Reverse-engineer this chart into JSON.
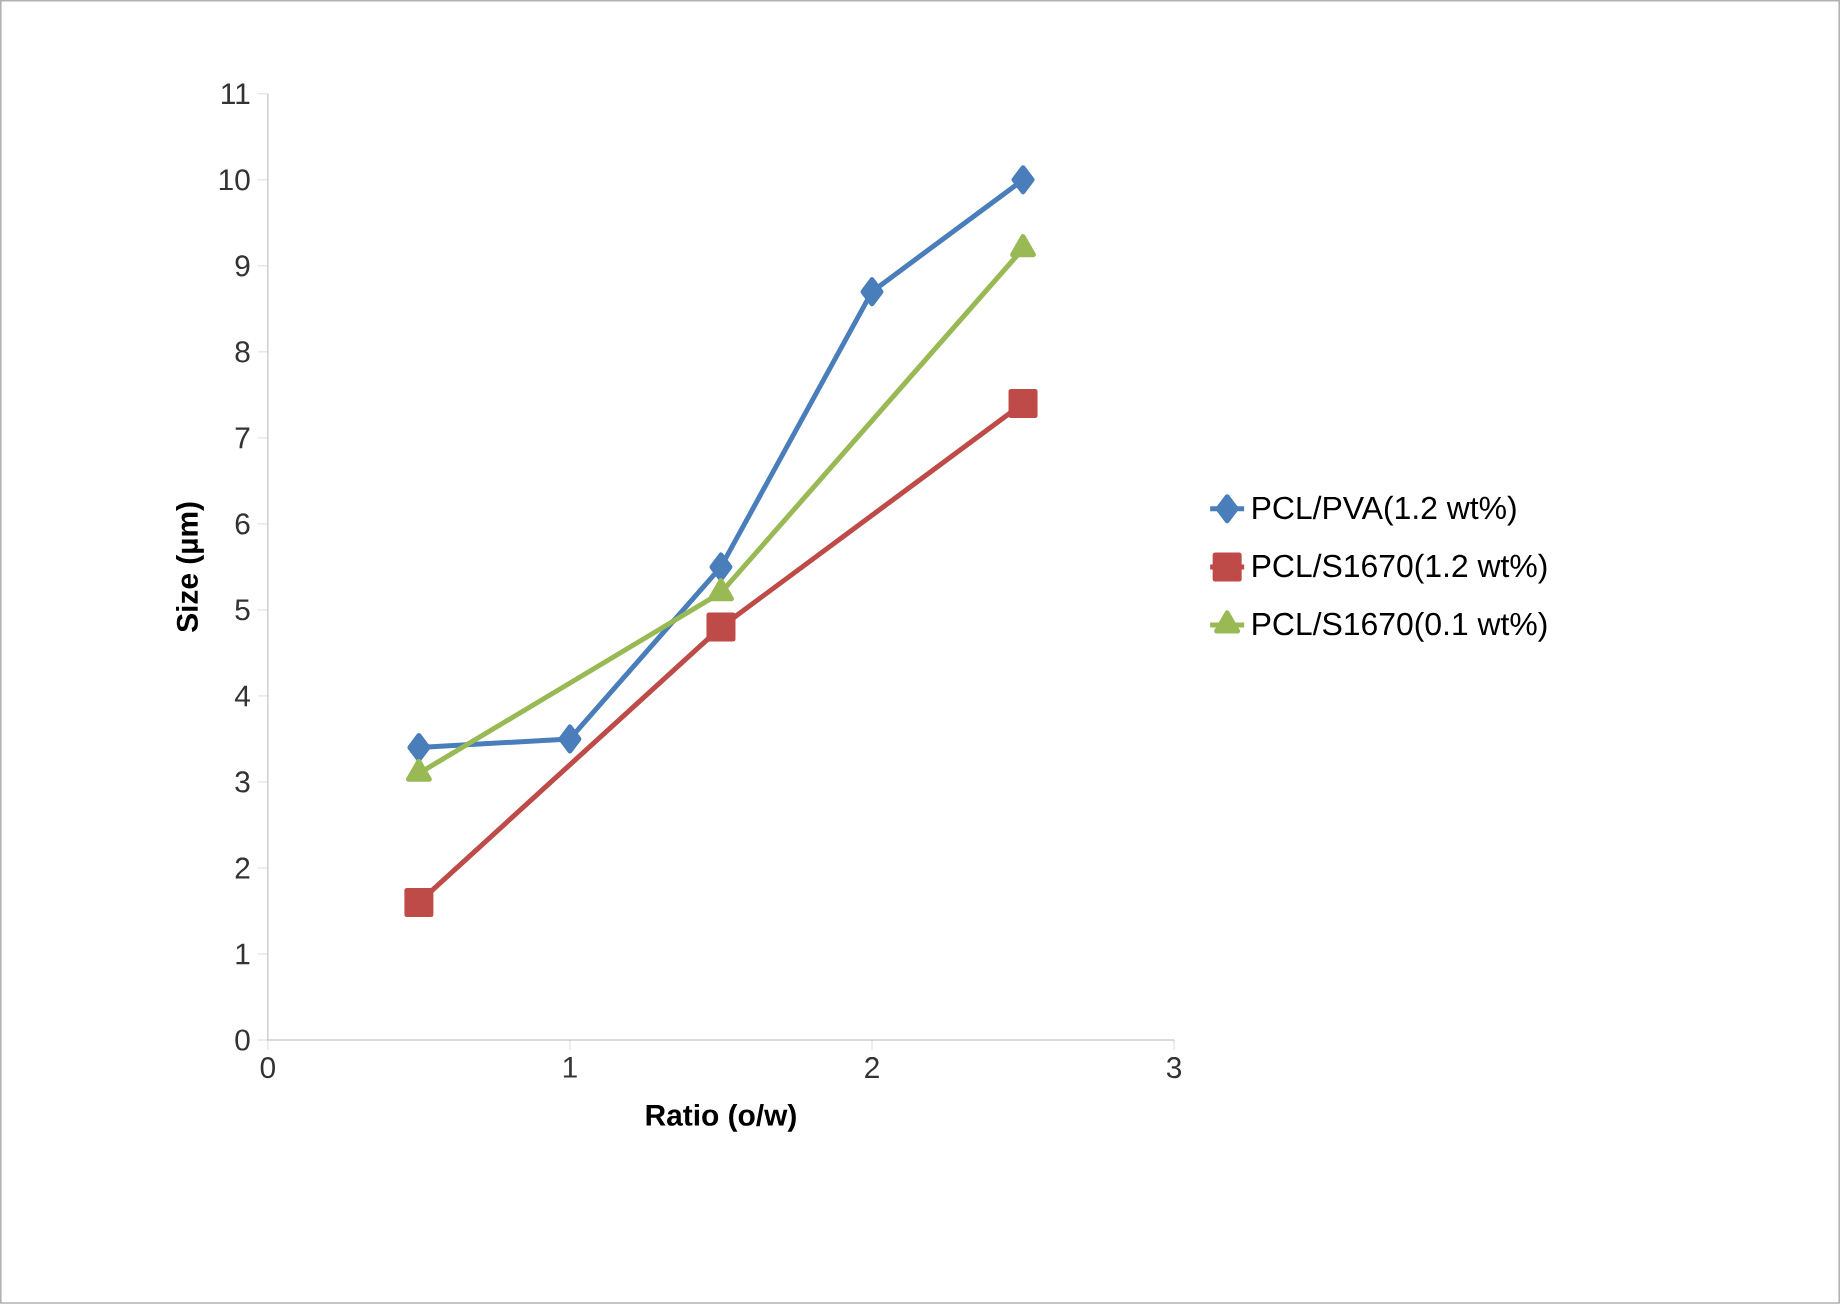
{
  "chart_data": {
    "type": "line",
    "xlabel": "Ratio (o/w)",
    "ylabel": "Size (µm)",
    "xlim": [
      0,
      3
    ],
    "xticks": [
      0,
      1,
      2,
      3
    ],
    "ylim": [
      0,
      11
    ],
    "yticks": [
      0,
      1,
      2,
      3,
      4,
      5,
      6,
      7,
      8,
      9,
      10,
      11
    ],
    "grid": false,
    "legend": "right",
    "line_style": "solid",
    "series": [
      {
        "name": "PCL/PVA(1.2 wt%)",
        "color": "#4a7ebb",
        "marker": "diamond",
        "x": [
          0.5,
          1,
          1.5,
          2,
          2.5
        ],
        "values": [
          3.4,
          3.5,
          5.5,
          8.7,
          10.0
        ]
      },
      {
        "name": "PCL/S1670(1.2 wt%)",
        "color": "#be4b48",
        "marker": "square",
        "x": [
          0.5,
          1.5,
          2.5
        ],
        "values": [
          1.6,
          4.8,
          7.4
        ]
      },
      {
        "name": "PCL/S1670(0.1 wt%)",
        "color": "#98b954",
        "marker": "triangle",
        "x": [
          0.5,
          1.5,
          2.5
        ],
        "values": [
          3.1,
          5.2,
          9.2
        ]
      }
    ]
  }
}
